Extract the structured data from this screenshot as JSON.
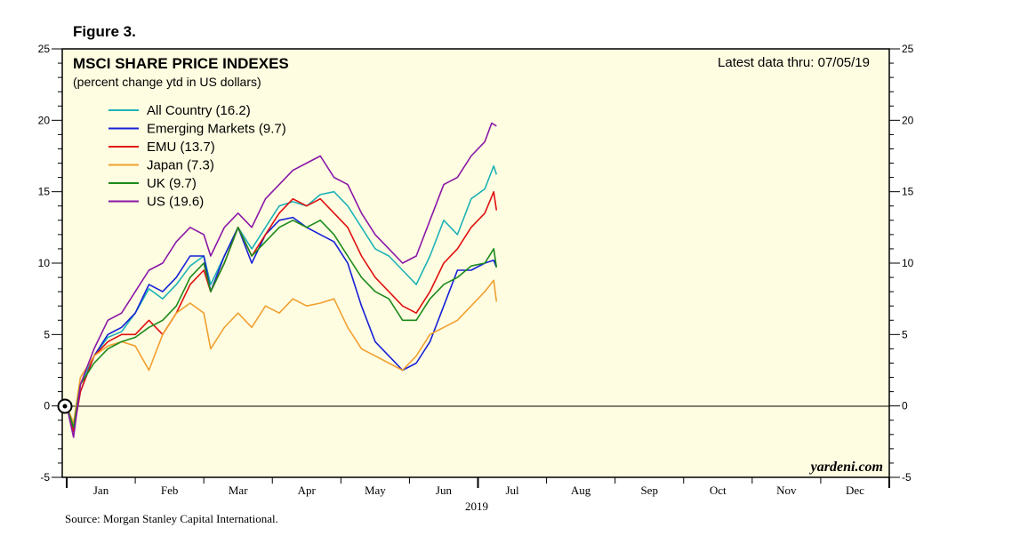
{
  "figure_label": "Figure 3.",
  "source": "Source: Morgan Stanley Capital International.",
  "watermark": "yardeni.com",
  "colors": {
    "plot_background": "#fffde1",
    "all_country": "#1fb2b7",
    "emerging_markets": "#1620d6",
    "emu": "#e01010",
    "japan": "#f0a030",
    "uk": "#1c8a1c",
    "us": "#8a17a8"
  },
  "chart_data": {
    "type": "line",
    "title": "MSCI SHARE PRICE INDEXES",
    "subtitle": "(percent change ytd in US dollars)",
    "note": "Latest data thru: 07/05/19",
    "year_label": "2019",
    "x_unit": "months since Jan 1, 2019",
    "xlim": [
      0,
      12
    ],
    "ylim": [
      -5,
      25
    ],
    "yticks": [
      -5,
      0,
      5,
      10,
      15,
      20,
      25
    ],
    "month_labels": [
      "Jan",
      "Feb",
      "Mar",
      "Apr",
      "May",
      "Jun",
      "Jul",
      "Aug",
      "Sep",
      "Oct",
      "Nov",
      "Dec"
    ],
    "grid": false,
    "legend_position": "top-left",
    "series": [
      {
        "key": "all_country",
        "name": "All Country (16.2)",
        "points": [
          [
            0,
            0
          ],
          [
            0.1,
            -1.5
          ],
          [
            0.2,
            1.5
          ],
          [
            0.4,
            3.5
          ],
          [
            0.6,
            4.8
          ],
          [
            0.8,
            5.2
          ],
          [
            1,
            6.5
          ],
          [
            1.2,
            8.2
          ],
          [
            1.4,
            7.5
          ],
          [
            1.6,
            8.5
          ],
          [
            1.8,
            9.8
          ],
          [
            2,
            10.5
          ],
          [
            2.1,
            8.5
          ],
          [
            2.3,
            10.5
          ],
          [
            2.5,
            12.5
          ],
          [
            2.7,
            11
          ],
          [
            2.9,
            12.5
          ],
          [
            3.1,
            14
          ],
          [
            3.3,
            14.3
          ],
          [
            3.5,
            14
          ],
          [
            3.7,
            14.8
          ],
          [
            3.9,
            15
          ],
          [
            4.1,
            14
          ],
          [
            4.3,
            12.5
          ],
          [
            4.5,
            11
          ],
          [
            4.7,
            10.5
          ],
          [
            4.9,
            9.5
          ],
          [
            5.1,
            8.5
          ],
          [
            5.3,
            10.5
          ],
          [
            5.5,
            13
          ],
          [
            5.7,
            12
          ],
          [
            5.9,
            14.5
          ],
          [
            6.1,
            15.2
          ],
          [
            6.23,
            16.8
          ],
          [
            6.27,
            16.2
          ]
        ]
      },
      {
        "key": "emerging_markets",
        "name": "Emerging Markets (9.7)",
        "points": [
          [
            0,
            0
          ],
          [
            0.1,
            -1.7
          ],
          [
            0.2,
            1
          ],
          [
            0.4,
            3.5
          ],
          [
            0.6,
            5
          ],
          [
            0.8,
            5.5
          ],
          [
            1,
            6.5
          ],
          [
            1.2,
            8.5
          ],
          [
            1.4,
            8
          ],
          [
            1.6,
            9
          ],
          [
            1.8,
            10.5
          ],
          [
            2,
            10.5
          ],
          [
            2.1,
            8
          ],
          [
            2.3,
            10.5
          ],
          [
            2.5,
            12.5
          ],
          [
            2.7,
            10
          ],
          [
            2.9,
            12
          ],
          [
            3.1,
            13
          ],
          [
            3.3,
            13.2
          ],
          [
            3.5,
            12.5
          ],
          [
            3.7,
            12
          ],
          [
            3.9,
            11.5
          ],
          [
            4.1,
            10
          ],
          [
            4.3,
            7
          ],
          [
            4.5,
            4.5
          ],
          [
            4.7,
            3.5
          ],
          [
            4.9,
            2.5
          ],
          [
            5.1,
            3
          ],
          [
            5.3,
            4.5
          ],
          [
            5.5,
            7
          ],
          [
            5.7,
            9.5
          ],
          [
            5.9,
            9.5
          ],
          [
            6.1,
            10
          ],
          [
            6.23,
            10.2
          ],
          [
            6.27,
            9.7
          ]
        ]
      },
      {
        "key": "emu",
        "name": "EMU (13.7)",
        "points": [
          [
            0,
            0
          ],
          [
            0.1,
            -1.8
          ],
          [
            0.2,
            1
          ],
          [
            0.4,
            3.5
          ],
          [
            0.6,
            4.5
          ],
          [
            0.8,
            5
          ],
          [
            1,
            5
          ],
          [
            1.2,
            6
          ],
          [
            1.4,
            5
          ],
          [
            1.6,
            6.5
          ],
          [
            1.8,
            8.5
          ],
          [
            2,
            9.5
          ],
          [
            2.1,
            8
          ],
          [
            2.3,
            10
          ],
          [
            2.5,
            12.5
          ],
          [
            2.7,
            10.5
          ],
          [
            2.9,
            12
          ],
          [
            3.1,
            13.5
          ],
          [
            3.3,
            14.5
          ],
          [
            3.5,
            14
          ],
          [
            3.7,
            14.5
          ],
          [
            3.9,
            13.5
          ],
          [
            4.1,
            12.5
          ],
          [
            4.3,
            10.5
          ],
          [
            4.5,
            9
          ],
          [
            4.7,
            8
          ],
          [
            4.9,
            7
          ],
          [
            5.1,
            6.5
          ],
          [
            5.3,
            8
          ],
          [
            5.5,
            10
          ],
          [
            5.7,
            11
          ],
          [
            5.9,
            12.5
          ],
          [
            6.1,
            13.5
          ],
          [
            6.23,
            15
          ],
          [
            6.27,
            13.7
          ]
        ]
      },
      {
        "key": "japan",
        "name": "Japan (7.3)",
        "points": [
          [
            0,
            0
          ],
          [
            0.1,
            -1.2
          ],
          [
            0.2,
            2
          ],
          [
            0.4,
            3.5
          ],
          [
            0.6,
            4.2
          ],
          [
            0.8,
            4.5
          ],
          [
            1,
            4.2
          ],
          [
            1.2,
            2.5
          ],
          [
            1.4,
            5
          ],
          [
            1.6,
            6.5
          ],
          [
            1.8,
            7.2
          ],
          [
            2,
            6.5
          ],
          [
            2.1,
            4
          ],
          [
            2.3,
            5.5
          ],
          [
            2.5,
            6.5
          ],
          [
            2.7,
            5.5
          ],
          [
            2.9,
            7
          ],
          [
            3.1,
            6.5
          ],
          [
            3.3,
            7.5
          ],
          [
            3.5,
            7
          ],
          [
            3.7,
            7.2
          ],
          [
            3.9,
            7.5
          ],
          [
            4.1,
            5.5
          ],
          [
            4.3,
            4
          ],
          [
            4.5,
            3.5
          ],
          [
            4.7,
            3
          ],
          [
            4.9,
            2.5
          ],
          [
            5.1,
            3.5
          ],
          [
            5.3,
            5
          ],
          [
            5.5,
            5.5
          ],
          [
            5.7,
            6
          ],
          [
            5.9,
            7
          ],
          [
            6.1,
            8
          ],
          [
            6.23,
            8.8
          ],
          [
            6.27,
            7.3
          ]
        ]
      },
      {
        "key": "uk",
        "name": "UK (9.7)",
        "points": [
          [
            0,
            0
          ],
          [
            0.1,
            -1.5
          ],
          [
            0.2,
            1.5
          ],
          [
            0.4,
            3
          ],
          [
            0.6,
            4
          ],
          [
            0.8,
            4.5
          ],
          [
            1,
            4.8
          ],
          [
            1.2,
            5.5
          ],
          [
            1.4,
            6
          ],
          [
            1.6,
            7
          ],
          [
            1.8,
            9
          ],
          [
            2,
            10
          ],
          [
            2.1,
            8
          ],
          [
            2.3,
            10
          ],
          [
            2.5,
            12.5
          ],
          [
            2.7,
            10.5
          ],
          [
            2.9,
            11.5
          ],
          [
            3.1,
            12.5
          ],
          [
            3.3,
            13
          ],
          [
            3.5,
            12.5
          ],
          [
            3.7,
            13
          ],
          [
            3.9,
            12
          ],
          [
            4.1,
            10.5
          ],
          [
            4.3,
            9
          ],
          [
            4.5,
            8
          ],
          [
            4.7,
            7.5
          ],
          [
            4.9,
            6
          ],
          [
            5.1,
            6
          ],
          [
            5.3,
            7.5
          ],
          [
            5.5,
            8.5
          ],
          [
            5.7,
            9
          ],
          [
            5.9,
            9.8
          ],
          [
            6.1,
            10
          ],
          [
            6.23,
            11
          ],
          [
            6.27,
            9.7
          ]
        ]
      },
      {
        "key": "us",
        "name": "US (19.6)",
        "points": [
          [
            0,
            0
          ],
          [
            0.1,
            -2.2
          ],
          [
            0.2,
            1.5
          ],
          [
            0.4,
            4
          ],
          [
            0.6,
            6
          ],
          [
            0.8,
            6.5
          ],
          [
            1,
            8
          ],
          [
            1.2,
            9.5
          ],
          [
            1.4,
            10
          ],
          [
            1.6,
            11.5
          ],
          [
            1.8,
            12.5
          ],
          [
            2,
            12
          ],
          [
            2.1,
            10.5
          ],
          [
            2.3,
            12.5
          ],
          [
            2.5,
            13.5
          ],
          [
            2.7,
            12.5
          ],
          [
            2.9,
            14.5
          ],
          [
            3.1,
            15.5
          ],
          [
            3.3,
            16.5
          ],
          [
            3.5,
            17
          ],
          [
            3.7,
            17.5
          ],
          [
            3.9,
            16
          ],
          [
            4.1,
            15.5
          ],
          [
            4.3,
            13.5
          ],
          [
            4.5,
            12
          ],
          [
            4.7,
            11
          ],
          [
            4.9,
            10
          ],
          [
            5.1,
            10.5
          ],
          [
            5.3,
            13
          ],
          [
            5.5,
            15.5
          ],
          [
            5.7,
            16
          ],
          [
            5.9,
            17.5
          ],
          [
            6.1,
            18.5
          ],
          [
            6.2,
            19.8
          ],
          [
            6.27,
            19.6
          ]
        ]
      }
    ]
  }
}
